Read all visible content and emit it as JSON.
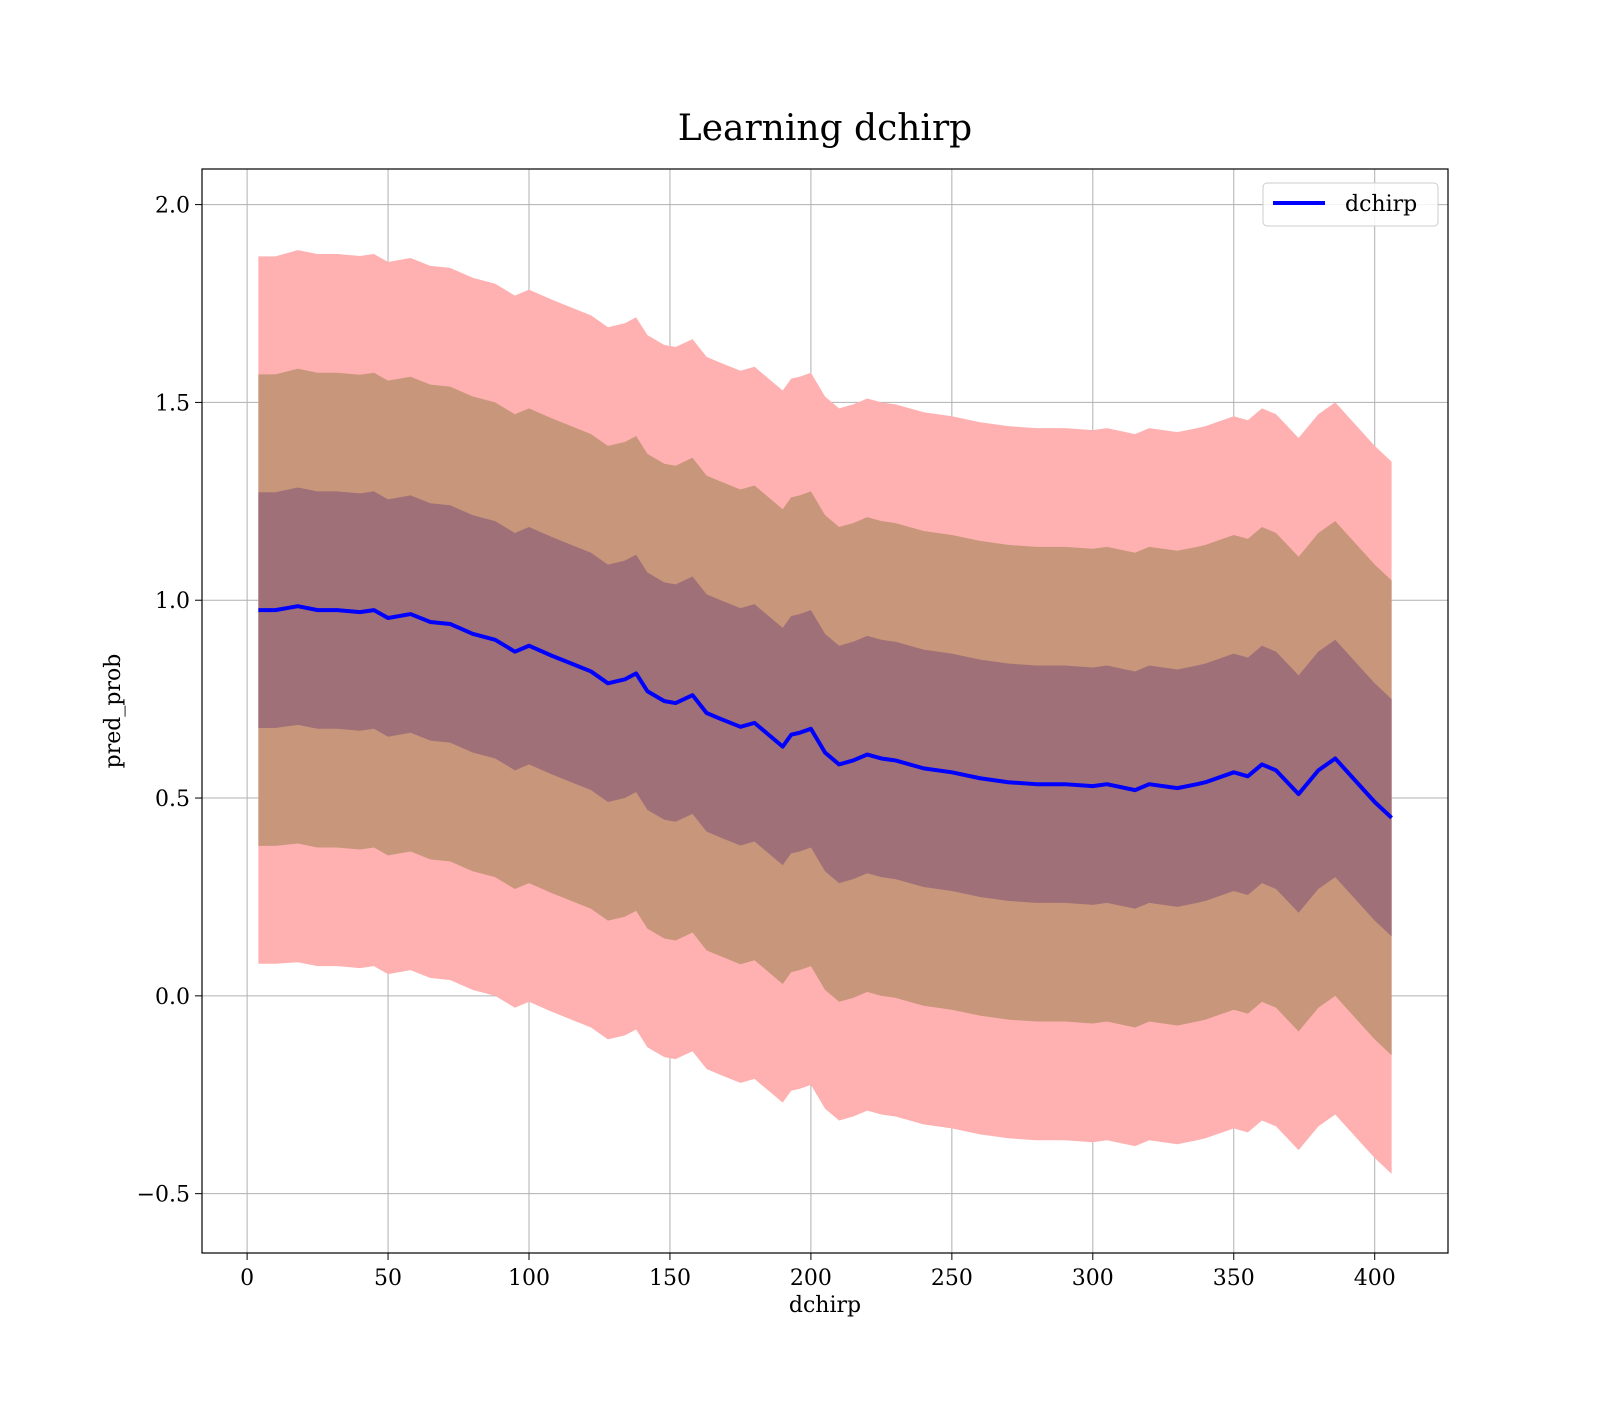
{
  "chart_data": {
    "type": "line",
    "title": "Learning dchirp",
    "xlabel": "dchirp",
    "ylabel": "pred_prob",
    "xlim": [
      -16,
      426
    ],
    "ylim": [
      -0.65,
      2.09
    ],
    "xticks": [
      0,
      50,
      100,
      150,
      200,
      250,
      300,
      350,
      400
    ],
    "yticks": [
      -0.5,
      0.0,
      0.5,
      1.0,
      1.5,
      2.0
    ],
    "ytick_labels": [
      "−0.5",
      "0.0",
      "0.5",
      "1.0",
      "1.5",
      "2.0"
    ],
    "grid": true,
    "legend": {
      "position": "top-right",
      "entries": [
        "dchirp"
      ]
    },
    "colors": {
      "line": "#0000ff",
      "band_1sd": "#a07078",
      "band_2sd": "#c8967a",
      "band_3sd": "#ffb0b0",
      "grid": "#b0b0b0"
    },
    "series": [
      {
        "name": "dchirp",
        "x": [
          4,
          10,
          18,
          25,
          32,
          40,
          45,
          50,
          58,
          65,
          72,
          80,
          88,
          95,
          100,
          108,
          115,
          122,
          128,
          134,
          138,
          142,
          148,
          152,
          158,
          163,
          168,
          175,
          180,
          185,
          190,
          193,
          196,
          200,
          205,
          210,
          215,
          220,
          225,
          230,
          240,
          250,
          260,
          270,
          280,
          290,
          300,
          305,
          315,
          320,
          330,
          337,
          340,
          350,
          355,
          360,
          365,
          373,
          380,
          386,
          393,
          400,
          406
        ],
        "mean": [
          0.975,
          0.975,
          0.985,
          0.975,
          0.975,
          0.97,
          0.975,
          0.955,
          0.965,
          0.945,
          0.94,
          0.915,
          0.9,
          0.87,
          0.885,
          0.86,
          0.84,
          0.82,
          0.79,
          0.8,
          0.815,
          0.77,
          0.745,
          0.74,
          0.76,
          0.715,
          0.7,
          0.68,
          0.69,
          0.66,
          0.63,
          0.66,
          0.665,
          0.675,
          0.615,
          0.585,
          0.595,
          0.61,
          0.6,
          0.595,
          0.575,
          0.565,
          0.55,
          0.54,
          0.535,
          0.535,
          0.53,
          0.535,
          0.52,
          0.535,
          0.525,
          0.535,
          0.54,
          0.565,
          0.555,
          0.585,
          0.57,
          0.51,
          0.57,
          0.6,
          0.545,
          0.49,
          0.45
        ],
        "sd": [
          0.298,
          0.298,
          0.3,
          0.3,
          0.3,
          0.3,
          0.3,
          0.3,
          0.3,
          0.3,
          0.3,
          0.3,
          0.3,
          0.3,
          0.3,
          0.3,
          0.3,
          0.3,
          0.3,
          0.3,
          0.3,
          0.3,
          0.3,
          0.3,
          0.3,
          0.3,
          0.3,
          0.3,
          0.3,
          0.3,
          0.3,
          0.3,
          0.3,
          0.3,
          0.3,
          0.3,
          0.3,
          0.3,
          0.3,
          0.3,
          0.3,
          0.3,
          0.3,
          0.3,
          0.3,
          0.3,
          0.3,
          0.3,
          0.3,
          0.3,
          0.3,
          0.3,
          0.3,
          0.3,
          0.3,
          0.3,
          0.3,
          0.3,
          0.3,
          0.3,
          0.3,
          0.3,
          0.3
        ]
      }
    ]
  }
}
